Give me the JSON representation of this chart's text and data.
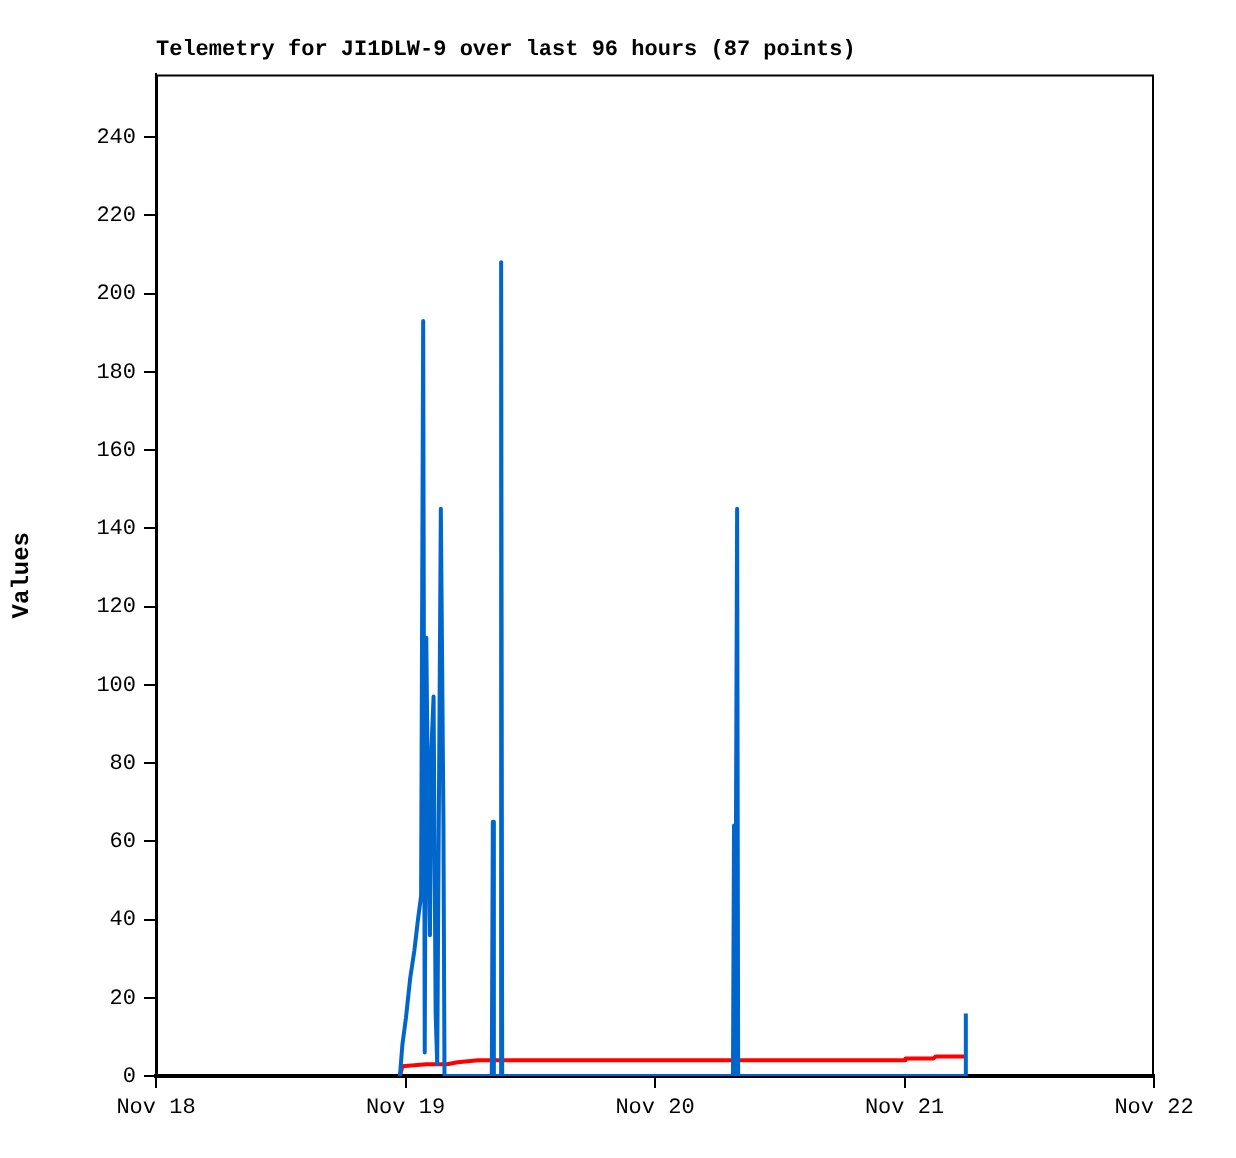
{
  "chart_data": {
    "type": "line",
    "title": "Telemetry for JI1DLW-9 over last 96 hours (87 points)",
    "ylabel": "Values",
    "xlim": [
      "--11-18",
      "--11-22"
    ],
    "xticks": [
      {
        "value": "--11-18",
        "label": "Nov 18"
      },
      {
        "value": "--11-19",
        "label": "Nov 19"
      },
      {
        "value": "--11-20",
        "label": "Nov 20"
      },
      {
        "value": "--11-21",
        "label": "Nov 21"
      },
      {
        "value": "--11-22",
        "label": "Nov 22"
      }
    ],
    "ylim": [
      0,
      256
    ],
    "yticks": [
      0,
      20,
      40,
      60,
      80,
      100,
      120,
      140,
      160,
      180,
      200,
      220,
      240
    ],
    "grid": false,
    "legend": false,
    "series": [
      {
        "color": "#0066cc",
        "x": [
          "--11-18T23:28",
          "--11-18T23:42",
          "--11-19T00:03",
          "--11-19T00:27",
          "--11-19T00:51",
          "--11-19T01:12",
          "--11-19T01:30",
          "--11-19T01:42",
          "--11-19T01:51",
          "--11-19T02:00",
          "--11-19T02:12",
          "--11-19T02:21",
          "--11-19T02:30",
          "--11-19T02:42",
          "--11-19T02:54",
          "--11-19T03:03",
          "--11-19T03:24",
          "--11-19T03:39",
          "--11-19T03:45",
          "--11-19T08:18",
          "--11-19T08:24",
          "--11-19T08:30",
          "--11-19T09:06",
          "--11-19T09:12",
          "--11-19T09:18",
          "--11-20T07:30",
          "--11-20T07:36",
          "--11-20T07:42",
          "--11-20T07:54",
          "--11-20T08:00",
          "--11-21T05:48",
          "--11-21T05:54"
        ],
        "values": [
          0,
          8,
          15,
          25,
          32,
          40,
          46,
          193,
          6,
          112,
          60,
          36,
          84,
          97,
          16,
          3,
          145,
          65,
          0,
          0,
          65,
          0,
          0,
          208,
          0,
          0,
          64,
          0,
          145,
          0,
          0,
          16
        ]
      },
      {
        "color": "#ff0000",
        "x": [
          "--11-18T23:28",
          "--11-18T23:42",
          "--11-19T02:00",
          "--11-19T04:00",
          "--11-19T05:00",
          "--11-19T07:00",
          "--11-20T07:30",
          "--11-20T07:36",
          "--11-20T07:42",
          "--11-21T00:00",
          "--11-21T00:06",
          "--11-21T02:48",
          "--11-21T03:00",
          "--11-21T05:54"
        ],
        "values": [
          0,
          2.5,
          3,
          3,
          3.5,
          4,
          4,
          3,
          4,
          4,
          4.5,
          4.5,
          5,
          5
        ]
      }
    ]
  }
}
